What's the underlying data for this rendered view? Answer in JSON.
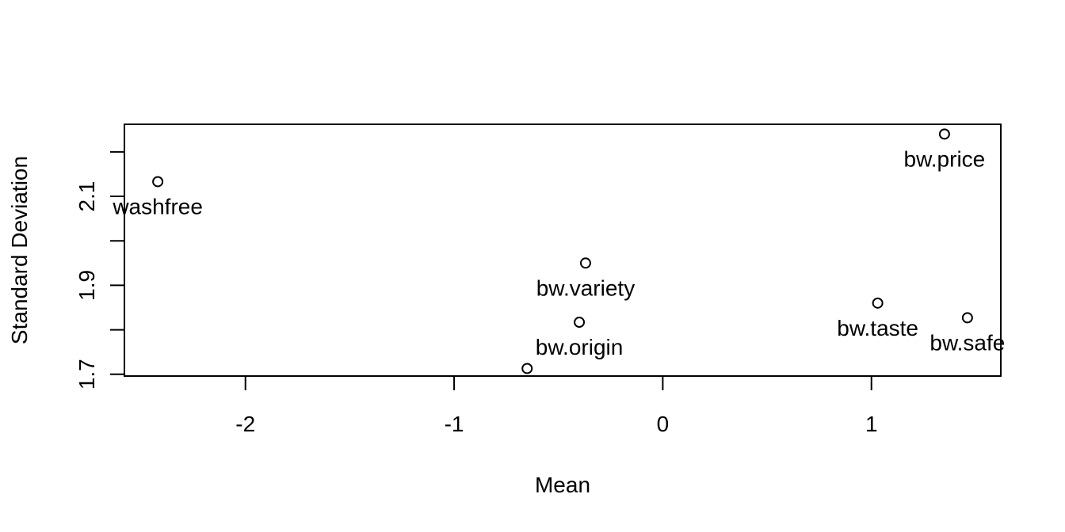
{
  "chart_data": {
    "type": "scatter",
    "title": "",
    "xlabel": "Mean",
    "ylabel": "Standard Deviation",
    "xlim": [
      -2.58,
      1.62
    ],
    "ylim": [
      1.696,
      2.262
    ],
    "x_ticks": [
      -2,
      -1,
      0,
      1
    ],
    "x_tick_labels": [
      "-2",
      "-1",
      "0",
      "1"
    ],
    "y_ticks": [
      1.7,
      1.8,
      1.9,
      2.0,
      2.1,
      2.2
    ],
    "y_tick_labels": [
      "1.7",
      "",
      "1.9",
      "",
      "2.1",
      ""
    ],
    "grid": false,
    "points": [
      {
        "label": "washfree",
        "x": -2.42,
        "y": 2.133
      },
      {
        "label": "bw.price",
        "x": 1.35,
        "y": 2.24
      },
      {
        "label": "bw.variety",
        "x": -0.37,
        "y": 1.95
      },
      {
        "label": "bw.origin",
        "x": -0.4,
        "y": 1.817
      },
      {
        "label": "bw.taste",
        "x": 1.03,
        "y": 1.86
      },
      {
        "label": "bw.safe",
        "x": 1.46,
        "y": 1.827
      },
      {
        "label": "",
        "x": -0.65,
        "y": 1.713
      }
    ]
  }
}
